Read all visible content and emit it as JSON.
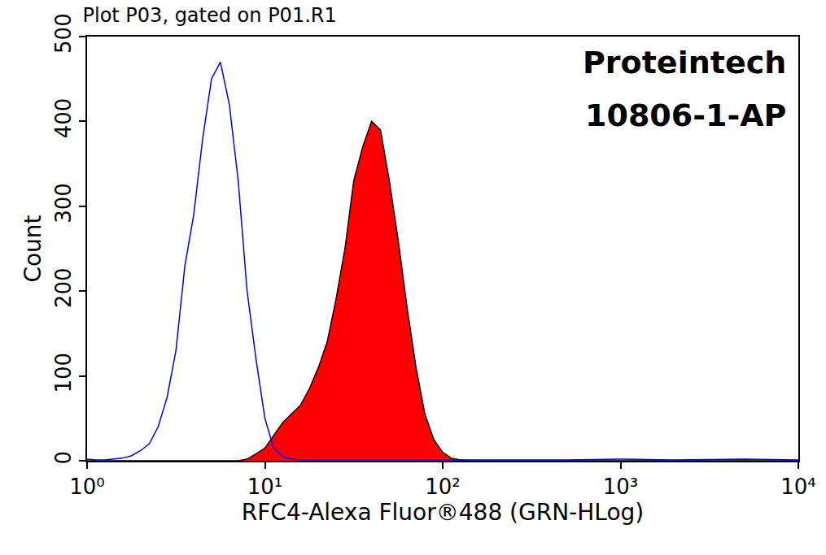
{
  "chart_data": {
    "type": "line",
    "title": "Plot P03, gated on P01.R1",
    "annotations": [
      "Proteintech",
      "10806-1-AP"
    ],
    "x_label": "RFC4-Alexa Fluor®488 (GRN-HLog)",
    "y_label": "Count",
    "log": "x",
    "grid": false,
    "xlim": [
      1,
      10000
    ],
    "ylim": [
      0,
      500
    ],
    "xticks": [
      {
        "value": 1,
        "label": "10⁰"
      },
      {
        "value": 10,
        "label": "10¹"
      },
      {
        "value": 100,
        "label": "10²"
      },
      {
        "value": 1000,
        "label": "10³"
      },
      {
        "value": 10000,
        "label": "10⁴"
      }
    ],
    "yticks": [
      0,
      100,
      200,
      300,
      400,
      500
    ],
    "x": [
      1,
      1.12,
      1.26,
      1.41,
      1.58,
      1.78,
      2,
      2.24,
      2.51,
      2.82,
      3.16,
      3.55,
      3.98,
      4.47,
      5.01,
      5.62,
      6.31,
      7.08,
      7.94,
      8.91,
      10,
      11.2,
      12.6,
      14.1,
      15.8,
      17.8,
      20,
      22.4,
      25.1,
      28.2,
      31.6,
      35.5,
      39.8,
      44.7,
      50.1,
      56.2,
      63.1,
      70.8,
      79.4,
      89.1,
      100,
      112,
      126,
      141,
      158,
      178,
      200,
      500,
      1000,
      2000,
      5000,
      10000
    ],
    "series": [
      {
        "type": "line",
        "color": "#0000ff",
        "values": [
          2,
          1,
          1,
          2,
          3,
          6,
          12,
          20,
          40,
          75,
          130,
          230,
          290,
          380,
          450,
          470,
          420,
          330,
          200,
          120,
          50,
          15,
          5,
          2,
          1,
          1,
          1,
          1,
          1,
          1,
          1,
          1,
          1,
          1,
          1,
          1,
          1,
          1,
          1,
          1,
          1,
          1,
          1,
          1,
          1,
          1,
          1,
          1,
          2,
          1,
          2,
          1
        ]
      },
      {
        "type": "area",
        "color": "#ff0000",
        "values": [
          0,
          0,
          0,
          0,
          0,
          0,
          0,
          0,
          0,
          0,
          0,
          0,
          0,
          0,
          0,
          0,
          0,
          0,
          2,
          8,
          15,
          30,
          45,
          55,
          65,
          85,
          110,
          140,
          190,
          250,
          330,
          370,
          400,
          390,
          330,
          260,
          180,
          110,
          55,
          25,
          10,
          3,
          1,
          0,
          0,
          0,
          0,
          0,
          0,
          0,
          0,
          0
        ]
      }
    ]
  }
}
